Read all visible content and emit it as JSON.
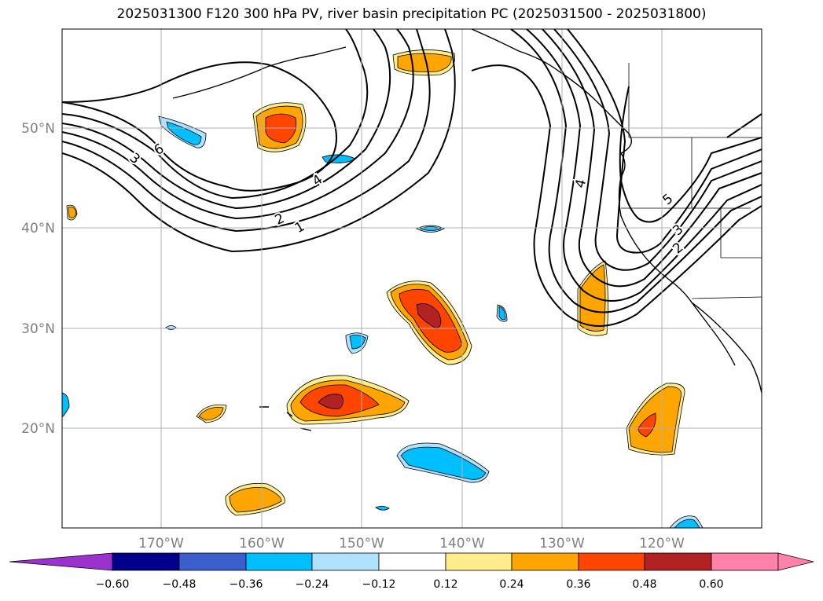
{
  "title": "2025031300 F120 300 hPa PV, river basin precipitation PC (2025031500 - 2025031800)",
  "map": {
    "lat_labels": [
      "50°N",
      "40°N",
      "30°N",
      "20°N"
    ],
    "lon_labels": [
      "170°W",
      "160°W",
      "150°W",
      "140°W",
      "130°W",
      "120°W"
    ],
    "contour_labels": [
      "6",
      "3",
      "4",
      "2",
      "1",
      "4",
      "5",
      "3",
      "2"
    ],
    "gridline_color": "#b0b0b0"
  },
  "colorbar": {
    "ticks": [
      "−0.60",
      "−0.48",
      "−0.36",
      "−0.24",
      "−0.12",
      "0.12",
      "0.24",
      "0.36",
      "0.48",
      "0.60"
    ],
    "colors": [
      "#9a32cd",
      "#00008b",
      "#3a5fcd",
      "#00bfff",
      "#b0e2ff",
      "#ffffff",
      "#ffec8b",
      "#ffa500",
      "#ff4500",
      "#b22222",
      "#ff82ab"
    ]
  }
}
